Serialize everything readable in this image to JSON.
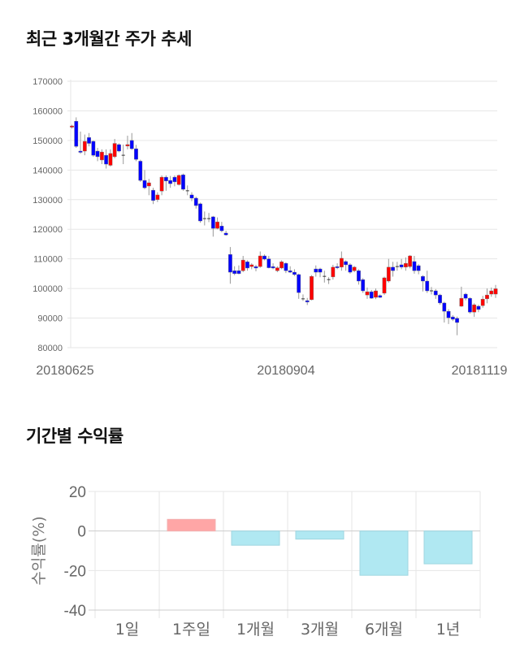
{
  "section1": {
    "title": "최근 3개월간 주가 추세",
    "chart_data": {
      "type": "candlestick",
      "title": "최근 3개월간 주가 추세",
      "ylim": [
        80000,
        170000
      ],
      "yticks": [
        "170000",
        "160000",
        "150000",
        "140000",
        "130000",
        "120000",
        "110000",
        "100000",
        "90000",
        "80000"
      ],
      "xlabels": [
        "20180625",
        "20180904",
        "20181119"
      ],
      "colors": {
        "up": "#ff0000",
        "down": "#0000ff",
        "wick": "#999999"
      },
      "ohlc": [
        [
          154500,
          155300,
          154000,
          154900
        ],
        [
          156500,
          157800,
          147500,
          148000
        ],
        [
          146400,
          153000,
          145500,
          146100
        ],
        [
          146400,
          152000,
          145000,
          149700
        ],
        [
          151000,
          152500,
          148000,
          149000
        ],
        [
          149700,
          150000,
          144500,
          145000
        ],
        [
          146400,
          147500,
          143000,
          144500
        ],
        [
          143400,
          147000,
          142000,
          146100
        ],
        [
          145000,
          147000,
          140500,
          142000
        ],
        [
          141600,
          147000,
          141200,
          145600
        ],
        [
          144500,
          150500,
          144000,
          149000
        ],
        [
          148600,
          149000,
          146000,
          146400
        ],
        [
          145000,
          148600,
          142000,
          145000
        ],
        [
          148100,
          151600,
          147000,
          148600
        ],
        [
          150000,
          152500,
          146800,
          147200
        ],
        [
          147200,
          148500,
          143000,
          143600
        ],
        [
          143000,
          143500,
          136000,
          136500
        ],
        [
          136500,
          140000,
          133500,
          134000
        ],
        [
          134600,
          137000,
          131500,
          135700
        ],
        [
          133200,
          134000,
          128500,
          129700
        ],
        [
          130000,
          132500,
          129200,
          131600
        ],
        [
          132900,
          138200,
          131500,
          137600
        ],
        [
          137600,
          138200,
          133000,
          136300
        ],
        [
          136500,
          138000,
          134000,
          135400
        ],
        [
          137600,
          138200,
          134500,
          136000
        ],
        [
          135100,
          138500,
          134800,
          138200
        ],
        [
          138400,
          138800,
          133000,
          133500
        ],
        [
          133000,
          134800,
          131500,
          133000
        ],
        [
          131600,
          132500,
          129500,
          130500
        ],
        [
          130500,
          131000,
          127000,
          128000
        ],
        [
          128600,
          129000,
          122200,
          122800
        ],
        [
          123600,
          126000,
          121300,
          123600
        ],
        [
          123600,
          125500,
          122400,
          123600
        ],
        [
          124200,
          124500,
          117500,
          120300
        ],
        [
          120300,
          124000,
          120000,
          122500
        ],
        [
          121100,
          122500,
          119000,
          119500
        ],
        [
          118700,
          119500,
          117800,
          118100
        ],
        [
          111500,
          114000,
          101600,
          105500
        ],
        [
          106000,
          107500,
          104500,
          105000
        ],
        [
          106000,
          107800,
          104800,
          105000
        ],
        [
          106000,
          111000,
          105500,
          109600
        ],
        [
          109000,
          109500,
          106000,
          106900
        ],
        [
          107400,
          108500,
          106500,
          108000
        ],
        [
          107400,
          108000,
          105800,
          106900
        ],
        [
          107400,
          112500,
          107000,
          111000
        ],
        [
          111000,
          111500,
          109500,
          109900
        ],
        [
          110000,
          111000,
          106800,
          107000
        ],
        [
          107400,
          108500,
          106500,
          106900
        ],
        [
          106000,
          107500,
          105500,
          107000
        ],
        [
          106900,
          109500,
          106500,
          109000
        ],
        [
          108500,
          108800,
          105200,
          106000
        ],
        [
          106000,
          107500,
          105200,
          105500
        ],
        [
          105500,
          106500,
          104200,
          104700
        ],
        [
          104700,
          105000,
          96500,
          98600
        ],
        [
          96500,
          98000,
          95800,
          96500
        ],
        [
          95900,
          96800,
          94400,
          95400
        ],
        [
          96200,
          104500,
          96000,
          104100
        ],
        [
          106600,
          107800,
          104000,
          105500
        ],
        [
          106600,
          107000,
          103800,
          105500
        ],
        [
          104100,
          106000,
          102000,
          104100
        ],
        [
          103000,
          103800,
          101500,
          103000
        ],
        [
          103900,
          108000,
          103000,
          107200
        ],
        [
          107400,
          108500,
          106500,
          107200
        ],
        [
          107200,
          112500,
          106000,
          110200
        ],
        [
          109100,
          109500,
          106000,
          108000
        ],
        [
          108000,
          108500,
          105000,
          105500
        ],
        [
          106000,
          107600,
          105500,
          107200
        ],
        [
          106000,
          106500,
          101300,
          102500
        ],
        [
          103000,
          103500,
          98500,
          99200
        ],
        [
          97800,
          100300,
          96500,
          98900
        ],
        [
          98900,
          99500,
          96500,
          96700
        ],
        [
          97000,
          100000,
          96400,
          99200
        ],
        [
          97600,
          98000,
          96800,
          97000
        ],
        [
          98400,
          104000,
          97800,
          103600
        ],
        [
          102500,
          110000,
          102000,
          107200
        ],
        [
          107200,
          109000,
          104000,
          106000
        ],
        [
          107400,
          109000,
          106000,
          107400
        ],
        [
          108000,
          110000,
          106500,
          107200
        ],
        [
          107200,
          110500,
          106000,
          108500
        ],
        [
          107400,
          111300,
          106800,
          111000
        ],
        [
          109100,
          111000,
          105000,
          106000
        ],
        [
          107700,
          108200,
          104800,
          106000
        ],
        [
          104100,
          104500,
          99000,
          102500
        ],
        [
          102500,
          106000,
          98500,
          99200
        ],
        [
          99200,
          100500,
          98000,
          99200
        ],
        [
          99200,
          99800,
          96500,
          97800
        ],
        [
          97800,
          98200,
          94500,
          95100
        ],
        [
          95100,
          95500,
          88500,
          92300
        ],
        [
          92300,
          93000,
          88000,
          90100
        ],
        [
          90400,
          91000,
          89000,
          89600
        ],
        [
          89900,
          90500,
          84200,
          88500
        ],
        [
          94000,
          100600,
          93800,
          96700
        ],
        [
          98100,
          98500,
          96000,
          96700
        ],
        [
          96700,
          97000,
          91500,
          92000
        ],
        [
          92000,
          95000,
          90400,
          94500
        ],
        [
          94000,
          94500,
          92000,
          92900
        ],
        [
          94200,
          97500,
          93500,
          96400
        ],
        [
          96500,
          100000,
          95000,
          97800
        ],
        [
          98100,
          100300,
          97200,
          99200
        ],
        [
          98100,
          101200,
          96800,
          99900
        ]
      ]
    }
  },
  "section2": {
    "title": "기간별 수익률",
    "chart_data": {
      "type": "bar",
      "title": "기간별 수익률",
      "ylabel": "수익률(%)",
      "ylim": [
        -40,
        20
      ],
      "yticks": [
        "20",
        "0",
        "-20",
        "-40"
      ],
      "categories": [
        "1일",
        "1주일",
        "1개월",
        "3개월",
        "6개월",
        "1년"
      ],
      "values": [
        0,
        5.9,
        -7.2,
        -4.1,
        -22.4,
        -16.6
      ],
      "colors": {
        "positive": "#ffa6a6",
        "negative": "#b0e8f2"
      }
    }
  }
}
